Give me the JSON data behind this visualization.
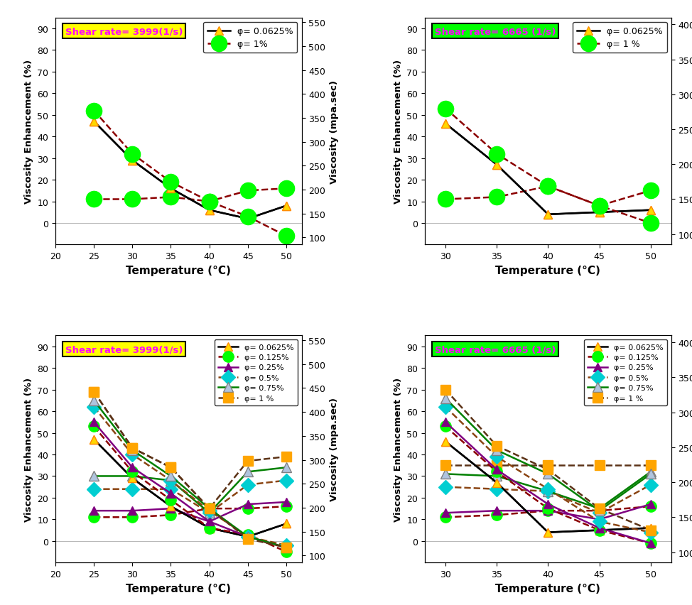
{
  "top_left": {
    "shear_rate": "Shear rate= 3999(1/s)",
    "box_color": "yellow",
    "xlim": [
      20,
      52
    ],
    "ylim": [
      -10,
      95
    ],
    "ylim2": [
      85,
      560
    ],
    "yticks": [
      0,
      10,
      20,
      30,
      40,
      50,
      60,
      70,
      80,
      90
    ],
    "yticks2": [
      100,
      150,
      200,
      250,
      300,
      350,
      400,
      450,
      500,
      550
    ],
    "xticks": [
      20,
      25,
      30,
      35,
      40,
      45,
      50
    ],
    "temp": [
      25,
      30,
      35,
      40,
      45,
      50
    ],
    "series": [
      {
        "label": "φ= 0.0625%",
        "color": "black",
        "linestyle": "-",
        "marker": "^",
        "markercolor": "#FFD700",
        "markersize": 9,
        "data": [
          47,
          29,
          16,
          6,
          2,
          8
        ]
      },
      {
        "label": "φ= 1%",
        "color": "#8B0000",
        "linestyle": "--",
        "marker": "o",
        "markercolor": "#00FF00",
        "markersize": 16,
        "data": [
          11,
          11,
          12,
          10,
          15,
          16
        ]
      }
    ],
    "series2": [
      {
        "label": "φ= 0.0625%",
        "color": "black",
        "linestyle": "-",
        "marker": "^",
        "markercolor": "#FFD700",
        "markersize": 9,
        "data": [
          47,
          29,
          16,
          6,
          2,
          8
        ]
      },
      {
        "label": "φ= 1%",
        "color": "#8B0000",
        "linestyle": "--",
        "marker": "o",
        "markercolor": "#00FF00",
        "markersize": 16,
        "data": [
          52,
          32,
          19,
          10,
          3,
          -6
        ]
      }
    ]
  },
  "top_right": {
    "shear_rate": "Shear rate= 6665 (1/s)",
    "box_color": "#00FF00",
    "xlim": [
      28,
      52
    ],
    "ylim": [
      -10,
      95
    ],
    "ylim2": [
      85,
      410
    ],
    "yticks": [
      0,
      10,
      20,
      30,
      40,
      50,
      60,
      70,
      80,
      90
    ],
    "yticks2": [
      100,
      150,
      200,
      250,
      300,
      350,
      400
    ],
    "xticks": [
      30,
      35,
      40,
      45,
      50
    ],
    "temp": [
      30,
      35,
      40,
      45,
      50
    ],
    "series": [
      {
        "label": "φ= 0.0625%",
        "color": "black",
        "linestyle": "-",
        "marker": "^",
        "markercolor": "#FFD700",
        "markersize": 9,
        "data": [
          46,
          27,
          4,
          5,
          6
        ]
      },
      {
        "label": "φ= 1 %",
        "color": "#8B0000",
        "linestyle": "--",
        "marker": "o",
        "markercolor": "#00FF00",
        "markersize": 16,
        "data": [
          11,
          12,
          17,
          8,
          15
        ]
      }
    ],
    "series2": [
      {
        "label": "φ= 0.0625%",
        "color": "black",
        "linestyle": "-",
        "marker": "^",
        "markercolor": "#FFD700",
        "markersize": 9,
        "data": [
          46,
          27,
          4,
          5,
          6
        ]
      },
      {
        "label": "φ= 1 %",
        "color": "#8B0000",
        "linestyle": "--",
        "marker": "o",
        "markercolor": "#00FF00",
        "markersize": 16,
        "data": [
          53,
          32,
          17,
          8,
          0
        ]
      }
    ]
  },
  "bot_left": {
    "shear_rate": "Shear rate= 3999(1/s)",
    "box_color": "yellow",
    "xlim": [
      20,
      52
    ],
    "ylim": [
      -10,
      95
    ],
    "ylim2": [
      85,
      560
    ],
    "yticks": [
      0,
      10,
      20,
      30,
      40,
      50,
      60,
      70,
      80,
      90
    ],
    "yticks2": [
      100,
      150,
      200,
      250,
      300,
      350,
      400,
      450,
      500,
      550
    ],
    "xticks": [
      20,
      25,
      30,
      35,
      40,
      45,
      50
    ],
    "temp": [
      25,
      30,
      35,
      40,
      45,
      50
    ],
    "series": [
      {
        "label": "φ= 0.0625%",
        "color": "black",
        "linestyle": "-",
        "marker": "^",
        "markercolor": "#FFD700",
        "markersize": 8,
        "data": [
          47,
          29,
          16,
          6,
          2,
          8
        ]
      },
      {
        "label": "φ= 0.125%",
        "color": "#8B0000",
        "linestyle": "--",
        "marker": "o",
        "markercolor": "#00FF00",
        "markersize": 11,
        "data": [
          11,
          11,
          12,
          15,
          15,
          16
        ]
      },
      {
        "label": "φ= 0.25%",
        "color": "purple",
        "linestyle": "-",
        "marker": "^",
        "markercolor": "purple",
        "markersize": 8,
        "data": [
          14,
          14,
          15,
          9,
          17,
          18
        ]
      },
      {
        "label": "φ= 0.5%",
        "color": "#8B4513",
        "linestyle": "--",
        "marker": "D",
        "markercolor": "#00CED1",
        "markersize": 10,
        "data": [
          24,
          24,
          24,
          13,
          26,
          28
        ]
      },
      {
        "label": "φ= 0.75%",
        "color": "green",
        "linestyle": "-",
        "marker": "^",
        "markercolor": "#B0C4DE",
        "markersize": 10,
        "data": [
          30,
          30,
          28,
          13,
          32,
          34
        ]
      },
      {
        "label": "φ= 1 %",
        "color": "#5C3317",
        "linestyle": "--",
        "marker": "s",
        "markercolor": "#FFA500",
        "markersize": 10,
        "data": [
          69,
          43,
          34,
          15,
          37,
          39
        ]
      }
    ],
    "series2": [
      {
        "data": [
          47,
          29,
          16,
          6,
          2,
          8
        ]
      },
      {
        "data": [
          53,
          32,
          19,
          6,
          3,
          -5
        ]
      },
      {
        "data": [
          55,
          34,
          22,
          9,
          2,
          -3
        ]
      },
      {
        "data": [
          62,
          40,
          28,
          14,
          2,
          -2
        ]
      },
      {
        "data": [
          65,
          42,
          30,
          15,
          2,
          -3
        ]
      },
      {
        "data": [
          69,
          43,
          34,
          15,
          1,
          -3
        ]
      }
    ]
  },
  "bot_right": {
    "shear_rate": "Shear rate= 6665 (1/s)",
    "box_color": "#00FF00",
    "xlim": [
      28,
      52
    ],
    "ylim": [
      -10,
      95
    ],
    "ylim2": [
      85,
      410
    ],
    "yticks": [
      0,
      10,
      20,
      30,
      40,
      50,
      60,
      70,
      80,
      90
    ],
    "yticks2": [
      100,
      150,
      200,
      250,
      300,
      350,
      400
    ],
    "xticks": [
      30,
      35,
      40,
      45,
      50
    ],
    "temp": [
      30,
      35,
      40,
      45,
      50
    ],
    "series": [
      {
        "label": "φ= 0.0625%",
        "color": "black",
        "linestyle": "-",
        "marker": "^",
        "markercolor": "#FFD700",
        "markersize": 8,
        "data": [
          46,
          27,
          4,
          5,
          6
        ]
      },
      {
        "label": "φ= 0.125%",
        "color": "#8B0000",
        "linestyle": "--",
        "marker": "o",
        "markercolor": "#00FF00",
        "markersize": 11,
        "data": [
          11,
          12,
          14,
          14,
          16
        ]
      },
      {
        "label": "φ= 0.25%",
        "color": "purple",
        "linestyle": "-",
        "marker": "^",
        "markercolor": "purple",
        "markersize": 8,
        "data": [
          13,
          14,
          14,
          10,
          17
        ]
      },
      {
        "label": "φ= 0.5%",
        "color": "#8B4513",
        "linestyle": "--",
        "marker": "D",
        "markercolor": "#00CED1",
        "markersize": 10,
        "data": [
          25,
          24,
          23,
          13,
          26
        ]
      },
      {
        "label": "φ= 0.75%",
        "color": "green",
        "linestyle": "-",
        "marker": "^",
        "markercolor": "#B0C4DE",
        "markersize": 10,
        "data": [
          31,
          30,
          23,
          15,
          32
        ]
      },
      {
        "label": "φ= 1 %",
        "color": "#5C3317",
        "linestyle": "--",
        "marker": "s",
        "markercolor": "#FFA500",
        "markersize": 10,
        "data": [
          35,
          35,
          35,
          35,
          35
        ]
      }
    ],
    "series2": [
      {
        "data": [
          46,
          27,
          4,
          5,
          6
        ]
      },
      {
        "data": [
          53,
          32,
          15,
          5,
          -1
        ]
      },
      {
        "data": [
          55,
          33,
          17,
          6,
          -1
        ]
      },
      {
        "data": [
          62,
          39,
          24,
          9,
          4
        ]
      },
      {
        "data": [
          66,
          42,
          31,
          14,
          31
        ]
      },
      {
        "data": [
          70,
          44,
          33,
          15,
          5
        ]
      }
    ]
  },
  "ylabel_left": "Viscosity Enhancement (%)",
  "ylabel_right": "Viscosity (mpa.sec)",
  "xlabel": "Temperature (°C)",
  "label_text_color": "magenta"
}
